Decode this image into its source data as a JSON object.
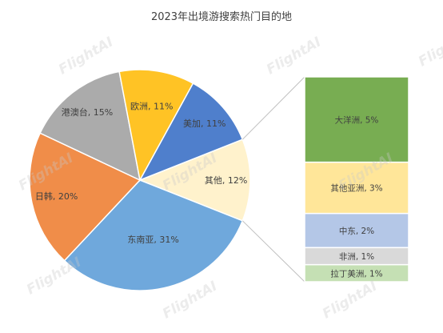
{
  "watermark": "FlightAI",
  "chart_data": {
    "type": "pie",
    "title": "2023年出境游搜索热门目的地",
    "pie": {
      "slices": [
        {
          "label": "其他",
          "value": 12,
          "color": "#FFF2CC",
          "display": "其他, 12%"
        },
        {
          "label": "东南亚",
          "value": 31,
          "color": "#6FA8DC",
          "display": "东南亚, 31%"
        },
        {
          "label": "日韩",
          "value": 20,
          "color": "#F08D49",
          "display": "日韩, 20%"
        },
        {
          "label": "港澳台",
          "value": 15,
          "color": "#ABABAB",
          "display": "港澳台, 15%"
        },
        {
          "label": "欧洲",
          "value": 11,
          "color": "#FFC325",
          "display": "欧洲, 11%"
        },
        {
          "label": "美加",
          "value": 11,
          "color": "#4F7FCC",
          "display": "美加, 11%"
        }
      ]
    },
    "bar_of_pie": {
      "source_slice": "其他",
      "segments": [
        {
          "label": "大洋洲",
          "value": 5,
          "color": "#78AD52",
          "display": "大洋洲, 5%"
        },
        {
          "label": "其他亚洲",
          "value": 3,
          "color": "#FFE699",
          "display": "其他亚洲, 3%"
        },
        {
          "label": "中东",
          "value": 2,
          "color": "#B4C7E7",
          "display": "中东, 2%"
        },
        {
          "label": "非洲",
          "value": 1,
          "color": "#D9D9D9",
          "display": "非洲, 1%"
        },
        {
          "label": "拉丁美洲",
          "value": 1,
          "color": "#C5E0B4",
          "display": "拉丁美洲, 1%"
        }
      ]
    }
  }
}
